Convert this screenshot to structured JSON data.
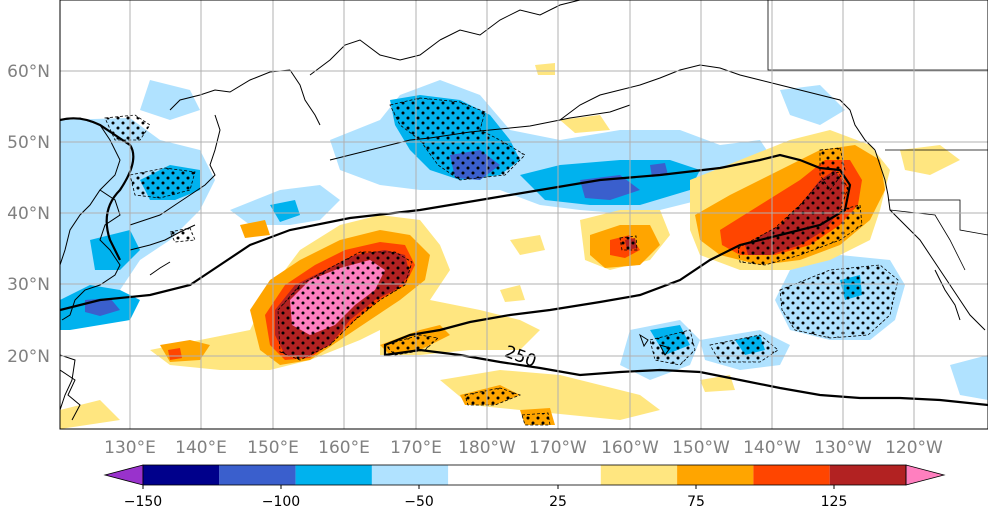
{
  "map": {
    "lon_ticks": [
      "130°E",
      "140°E",
      "150°E",
      "160°E",
      "170°E",
      "180°W",
      "170°W",
      "160°W",
      "150°W",
      "140°W",
      "130°W",
      "120°W"
    ],
    "lat_ticks": [
      "60°N",
      "50°N",
      "40°N",
      "30°N",
      "20°N"
    ],
    "contour_label": "250",
    "colorbar": {
      "colors": [
        "#9932cc",
        "#00008b",
        "#3a5fcd",
        "#00b2ee",
        "#b0e2ff",
        "#ffffff",
        "#ffe680",
        "#ffa500",
        "#ff4500",
        "#b22222",
        "#ff7fbf"
      ],
      "boundaries": [
        -150,
        -125,
        -100,
        -75,
        -50,
        -25,
        25,
        50,
        75,
        100,
        125,
        150
      ],
      "tick_labels": [
        "−150",
        "−100",
        "−50",
        "25",
        "75",
        "125"
      ],
      "extend": "both"
    }
  }
}
